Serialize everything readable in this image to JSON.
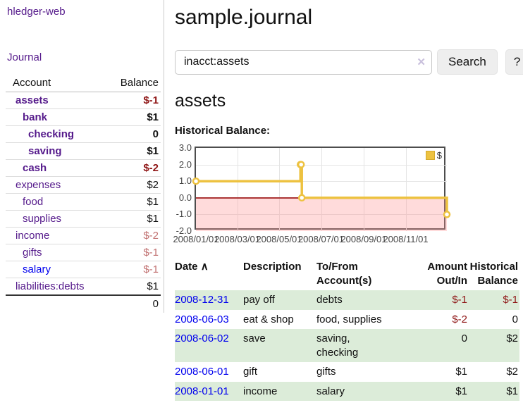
{
  "app": {
    "name": "hledger-web",
    "nav": {
      "journal": "Journal"
    }
  },
  "colors": {
    "link_purple": "#551a8b",
    "link_blue": "#0000ee",
    "negative_strong": "#8f1616",
    "negative_soft": "#c17070",
    "row_stripe_green": "#dcecd9",
    "series_gold": "#edc240"
  },
  "sidebar": {
    "header": {
      "account": "Account",
      "balance": "Balance"
    },
    "accounts": [
      {
        "name": "assets",
        "balance": "$-1"
      },
      {
        "name": "bank",
        "balance": "$1"
      },
      {
        "name": "checking",
        "balance": "0"
      },
      {
        "name": "saving",
        "balance": "$1"
      },
      {
        "name": "cash",
        "balance": "$-2"
      },
      {
        "name": "expenses",
        "balance": "$2"
      },
      {
        "name": "food",
        "balance": "$1"
      },
      {
        "name": "supplies",
        "balance": "$1"
      },
      {
        "name": "income",
        "balance": "$-2"
      },
      {
        "name": "gifts",
        "balance": "$-1"
      },
      {
        "name": "salary",
        "balance": "$-1"
      },
      {
        "name": "liabilities:debts",
        "balance": "$1"
      }
    ],
    "total": "0"
  },
  "header": {
    "title": "sample.journal"
  },
  "search": {
    "query": "inacct:assets",
    "clear_icon": "✕",
    "button_label": "Search",
    "help_label": "?"
  },
  "account_page": {
    "title": "assets",
    "chart_heading": "Historical Balance:"
  },
  "chart_data": {
    "type": "line",
    "step": true,
    "title": "Historical Balance",
    "series": [
      {
        "name": "$",
        "color": "#edc240",
        "points": [
          [
            "2008-01-01",
            1
          ],
          [
            "2008-06-01",
            2
          ],
          [
            "2008-06-02",
            2
          ],
          [
            "2008-06-03",
            0
          ],
          [
            "2008-12-31",
            -1
          ]
        ]
      }
    ],
    "xrange": [
      "2008-01-01",
      "2008-12-31"
    ],
    "ylim": [
      -2,
      3
    ],
    "y_ticks": [
      "3.0",
      "2.0",
      "1.0",
      "0.0",
      "-1.0",
      "-2.0"
    ],
    "x_ticks": [
      "2008/01/01",
      "2008/03/01",
      "2008/05/01",
      "2008/07/01",
      "2008/09/01",
      "2008/11/01"
    ],
    "grid": true,
    "legend_position": "top-right",
    "annotations": {
      "negative_region_fill": "#f9d9d9",
      "zero_line_color": "#ab3434"
    }
  },
  "register": {
    "sort_icon": "∧",
    "columns": [
      "Date",
      "Description",
      "To/From\nAccount(s)",
      "Amount\nOut/In",
      "Historical\nBalance"
    ],
    "rows": [
      {
        "date": "2008-12-31",
        "description": "pay off",
        "accounts": "debts",
        "amount": "$-1",
        "balance": "$-1"
      },
      {
        "date": "2008-06-03",
        "description": "eat & shop",
        "accounts": "food, supplies",
        "amount": "$-2",
        "balance": "0"
      },
      {
        "date": "2008-06-02",
        "description": "save",
        "accounts": "saving,\nchecking",
        "amount": "0",
        "balance": "$2"
      },
      {
        "date": "2008-06-01",
        "description": "gift",
        "accounts": "gifts",
        "amount": "$1",
        "balance": "$2"
      },
      {
        "date": "2008-01-01",
        "description": "income",
        "accounts": "salary",
        "amount": "$1",
        "balance": "$1"
      }
    ]
  }
}
